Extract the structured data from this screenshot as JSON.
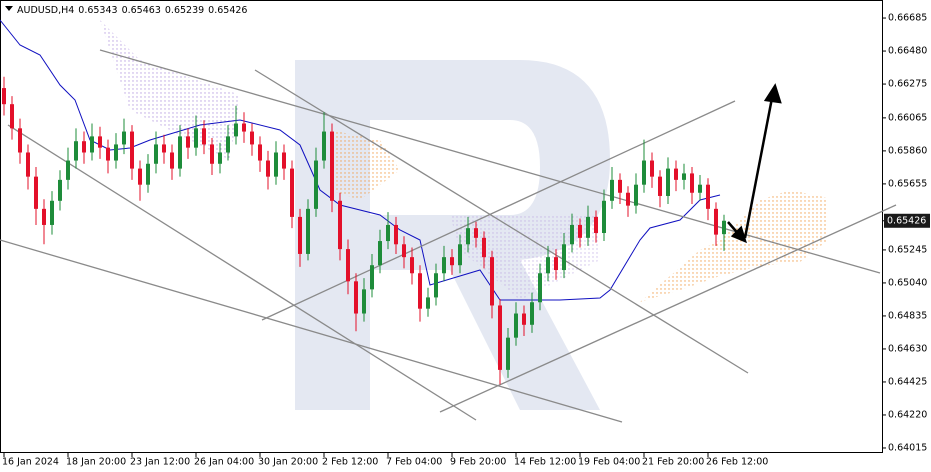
{
  "chart_data": {
    "type": "candlestick",
    "title": "AUDUSD,H4",
    "up_color": "#1e8c3a",
    "down_color": "#e3102a",
    "grid": false,
    "ylim": [
      0.6399,
      0.66797
    ],
    "yticks": [
      0.66685,
      {
        "value": 0.6648,
        "label": "0.66480"
      },
      0.66275,
      0.66065,
      {
        "value": 0.6586,
        "label": "0.65860"
      },
      0.65655,
      0.65245,
      {
        "value": 0.6504,
        "label": "0.65040"
      },
      0.64835,
      {
        "value": 0.6463,
        "label": "0.64630"
      },
      0.64425,
      {
        "value": 0.6422,
        "label": "0.64220"
      },
      0.64015
    ],
    "xlim": [
      -0.5,
      109.5
    ],
    "xticks": [
      {
        "value": 0,
        "label": "16 Jan 2024"
      },
      {
        "value": 8,
        "label": "18 Jan 20:00"
      },
      {
        "value": 16,
        "label": "23 Jan 12:00"
      },
      {
        "value": 24,
        "label": "26 Jan 04:00"
      },
      {
        "value": 32,
        "label": "30 Jan 20:00"
      },
      {
        "value": 40,
        "label": "2 Feb 12:00"
      },
      {
        "value": 48,
        "label": "7 Feb 04:00"
      },
      {
        "value": 56,
        "label": "9 Feb 20:00"
      },
      {
        "value": 64,
        "label": "14 Feb 12:00"
      },
      {
        "value": 72,
        "label": "19 Feb 04:00"
      },
      {
        "value": 80,
        "label": "21 Feb 20:00"
      },
      {
        "value": 88,
        "label": "26 Feb 12:00"
      }
    ],
    "ohlc": [
      [
        0.6625,
        0.6632,
        0.6608,
        0.6615
      ],
      [
        0.6615,
        0.662,
        0.6593,
        0.66
      ],
      [
        0.66,
        0.6606,
        0.6578,
        0.6585
      ],
      [
        0.6585,
        0.659,
        0.6562,
        0.657
      ],
      [
        0.657,
        0.6576,
        0.654,
        0.655
      ],
      [
        0.655,
        0.6556,
        0.6528,
        0.654
      ],
      [
        0.654,
        0.6561,
        0.6534,
        0.6555
      ],
      [
        0.6555,
        0.6574,
        0.6549,
        0.6568
      ],
      [
        0.6568,
        0.6588,
        0.6562,
        0.658
      ],
      [
        0.658,
        0.66,
        0.6575,
        0.6592
      ],
      [
        0.6592,
        0.6598,
        0.6578,
        0.6585
      ],
      [
        0.6585,
        0.6603,
        0.658,
        0.6595
      ],
      [
        0.6595,
        0.6601,
        0.6581,
        0.6588
      ],
      [
        0.6588,
        0.6593,
        0.6572,
        0.658
      ],
      [
        0.658,
        0.6597,
        0.6575,
        0.659
      ],
      [
        0.659,
        0.6606,
        0.6584,
        0.6598
      ],
      [
        0.6598,
        0.6602,
        0.6568,
        0.6575
      ],
      [
        0.6575,
        0.658,
        0.6555,
        0.6565
      ],
      [
        0.6565,
        0.6584,
        0.656,
        0.6578
      ],
      [
        0.6578,
        0.6598,
        0.6572,
        0.659
      ],
      [
        0.659,
        0.6596,
        0.6578,
        0.6585
      ],
      [
        0.6585,
        0.659,
        0.6568,
        0.6575
      ],
      [
        0.6575,
        0.6602,
        0.657,
        0.6595
      ],
      [
        0.6595,
        0.66,
        0.6581,
        0.6588
      ],
      [
        0.6588,
        0.6608,
        0.6583,
        0.66
      ],
      [
        0.66,
        0.6605,
        0.6584,
        0.659
      ],
      [
        0.659,
        0.6594,
        0.6571,
        0.6578
      ],
      [
        0.6578,
        0.6591,
        0.6572,
        0.6585
      ],
      [
        0.6585,
        0.6602,
        0.658,
        0.6595
      ],
      [
        0.6595,
        0.6614,
        0.659,
        0.6603
      ],
      [
        0.6603,
        0.661,
        0.6591,
        0.6598
      ],
      [
        0.6598,
        0.6603,
        0.6583,
        0.659
      ],
      [
        0.659,
        0.6595,
        0.6573,
        0.658
      ],
      [
        0.658,
        0.6586,
        0.6562,
        0.657
      ],
      [
        0.657,
        0.6592,
        0.6565,
        0.6585
      ],
      [
        0.6585,
        0.659,
        0.6568,
        0.6575
      ],
      [
        0.6575,
        0.658,
        0.6538,
        0.6545
      ],
      [
        0.6545,
        0.655,
        0.6514,
        0.6522
      ],
      [
        0.6522,
        0.6556,
        0.6518,
        0.655
      ],
      [
        0.655,
        0.6588,
        0.6545,
        0.658
      ],
      [
        0.658,
        0.661,
        0.6575,
        0.6598
      ],
      [
        0.6598,
        0.6603,
        0.6548,
        0.6555
      ],
      [
        0.6555,
        0.656,
        0.6518,
        0.6525
      ],
      [
        0.6525,
        0.6531,
        0.6497,
        0.6505
      ],
      [
        0.6505,
        0.651,
        0.6474,
        0.6485
      ],
      [
        0.6485,
        0.6507,
        0.648,
        0.65
      ],
      [
        0.65,
        0.6522,
        0.6495,
        0.6515
      ],
      [
        0.6515,
        0.6537,
        0.651,
        0.653
      ],
      [
        0.653,
        0.6548,
        0.6525,
        0.654
      ],
      [
        0.654,
        0.6545,
        0.6522,
        0.6528
      ],
      [
        0.6528,
        0.6533,
        0.6513,
        0.652
      ],
      [
        0.652,
        0.6526,
        0.6503,
        0.651
      ],
      [
        0.651,
        0.6515,
        0.648,
        0.6488
      ],
      [
        0.6488,
        0.6501,
        0.6483,
        0.6495
      ],
      [
        0.6495,
        0.6516,
        0.649,
        0.651
      ],
      [
        0.651,
        0.6527,
        0.6505,
        0.652
      ],
      [
        0.652,
        0.6525,
        0.6509,
        0.6515
      ],
      [
        0.6515,
        0.6534,
        0.651,
        0.6528
      ],
      [
        0.6528,
        0.6545,
        0.6523,
        0.6538
      ],
      [
        0.6538,
        0.6542,
        0.6526,
        0.6532
      ],
      [
        0.6532,
        0.6536,
        0.6513,
        0.652
      ],
      [
        0.652,
        0.6524,
        0.6482,
        0.649
      ],
      [
        0.649,
        0.6494,
        0.6441,
        0.645
      ],
      [
        0.645,
        0.6476,
        0.6445,
        0.647
      ],
      [
        0.647,
        0.6492,
        0.6465,
        0.6485
      ],
      [
        0.6485,
        0.649,
        0.6471,
        0.6478
      ],
      [
        0.6478,
        0.6498,
        0.6473,
        0.6492
      ],
      [
        0.6492,
        0.6516,
        0.6487,
        0.651
      ],
      [
        0.651,
        0.6527,
        0.6505,
        0.652
      ],
      [
        0.652,
        0.6525,
        0.6506,
        0.6512
      ],
      [
        0.6512,
        0.6535,
        0.6507,
        0.6528
      ],
      [
        0.6528,
        0.6547,
        0.6523,
        0.654
      ],
      [
        0.654,
        0.6544,
        0.6526,
        0.6532
      ],
      [
        0.6532,
        0.6552,
        0.6527,
        0.6545
      ],
      [
        0.6545,
        0.6549,
        0.6529,
        0.6535
      ],
      [
        0.6535,
        0.6562,
        0.653,
        0.6555
      ],
      [
        0.6555,
        0.6576,
        0.655,
        0.6568
      ],
      [
        0.6568,
        0.6572,
        0.6553,
        0.656
      ],
      [
        0.656,
        0.6564,
        0.6545,
        0.6552
      ],
      [
        0.6552,
        0.6572,
        0.6547,
        0.6565
      ],
      [
        0.6565,
        0.6593,
        0.656,
        0.658
      ],
      [
        0.658,
        0.6585,
        0.6563,
        0.657
      ],
      [
        0.657,
        0.6574,
        0.6551,
        0.6558
      ],
      [
        0.6558,
        0.6582,
        0.6553,
        0.6575
      ],
      [
        0.6575,
        0.658,
        0.6561,
        0.6568
      ],
      [
        0.6568,
        0.6578,
        0.6562,
        0.6572
      ],
      [
        0.6572,
        0.6576,
        0.6553,
        0.656
      ],
      [
        0.656,
        0.6571,
        0.6555,
        0.6565
      ],
      [
        0.6565,
        0.6569,
        0.6543,
        0.655
      ],
      [
        0.655,
        0.6554,
        0.6527,
        0.6534
      ],
      [
        0.65343,
        0.65463,
        0.65239,
        0.65426
      ]
    ]
  }
}
